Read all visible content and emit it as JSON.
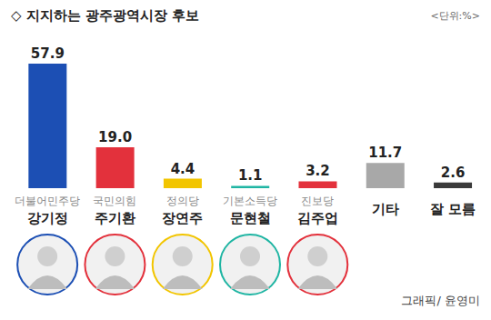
{
  "chart_data": {
    "type": "bar",
    "title": "◇ 지지하는 광주광역시장 후보",
    "subtitle": "<단위:%>",
    "credit": "그래픽/ 윤영미",
    "categories": [
      "강기정",
      "주기환",
      "장연주",
      "문현철",
      "김주업",
      "기타",
      "잘 모름"
    ],
    "parties": [
      "더불어민주당",
      "국민의힘",
      "정의당",
      "기본소득당",
      "진보당",
      null,
      null
    ],
    "values": [
      57.9,
      19.0,
      4.4,
      1.1,
      3.2,
      11.7,
      2.6
    ],
    "value_labels": [
      "57.9",
      "19.0",
      "4.4",
      "1.1",
      "3.2",
      "11.7",
      "2.6"
    ],
    "colors": [
      "#1c4fb4",
      "#e3313c",
      "#f2c500",
      "#1fb5a3",
      "#e3313c",
      "#a8a8a8",
      "#3a3a3a"
    ],
    "ylim": [
      0,
      60
    ],
    "tick_labels": false,
    "data_labels": true,
    "grid": false
  }
}
